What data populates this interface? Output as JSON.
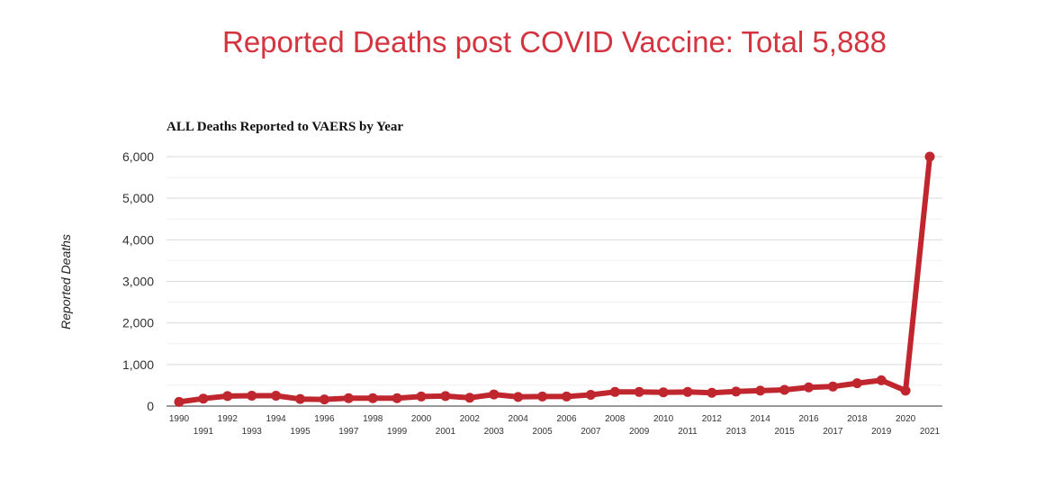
{
  "header": {
    "title": "Reported Deaths post COVID Vaccine: Total 5,888"
  },
  "colors": {
    "title": "#d3343f",
    "line": "#c0262d",
    "grid": "#d9d9d9",
    "axis": "#333333"
  },
  "chart_data": {
    "type": "line",
    "title": "ALL Deaths Reported to VAERS by Year",
    "xlabel": "",
    "ylabel": "Reported Deaths",
    "ylim": [
      0,
      6000
    ],
    "yticks": [
      "0",
      "1,000",
      "2,000",
      "3,000",
      "4,000",
      "5,000",
      "6,000"
    ],
    "grid": true,
    "legend": "none",
    "categories": [
      "1990",
      "1991",
      "1992",
      "1993",
      "1994",
      "1995",
      "1996",
      "1997",
      "1998",
      "1999",
      "2000",
      "2001",
      "2002",
      "2003",
      "2004",
      "2005",
      "2006",
      "2007",
      "2008",
      "2009",
      "2010",
      "2011",
      "2012",
      "2013",
      "2014",
      "2015",
      "2016",
      "2017",
      "2018",
      "2019",
      "2020",
      "2021"
    ],
    "series": [
      {
        "values": [
          100,
          180,
          240,
          250,
          250,
          170,
          160,
          190,
          190,
          190,
          230,
          240,
          200,
          280,
          220,
          230,
          230,
          270,
          340,
          340,
          330,
          340,
          320,
          350,
          370,
          390,
          450,
          470,
          550,
          620,
          370,
          6000
        ]
      }
    ]
  }
}
